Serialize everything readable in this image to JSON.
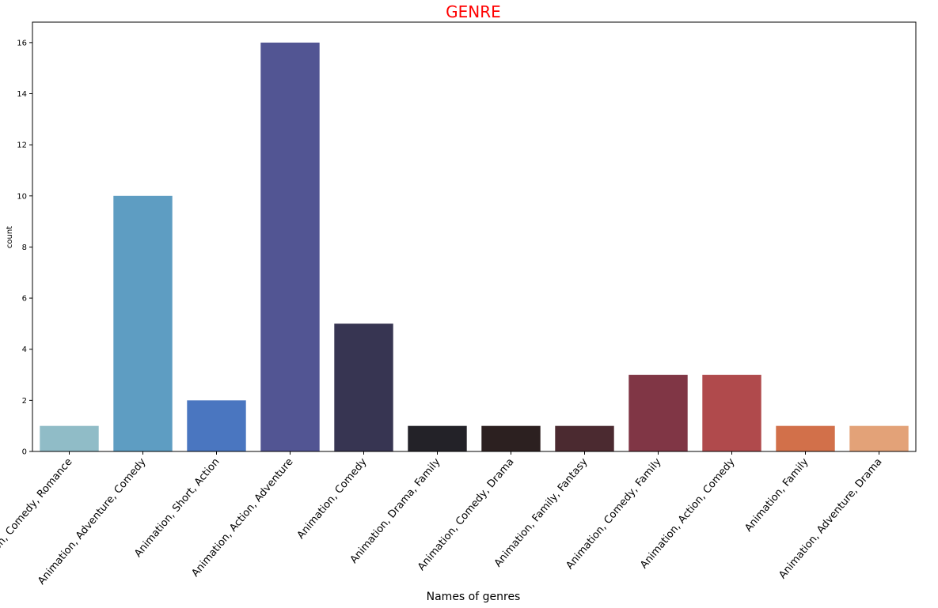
{
  "chart_data": {
    "type": "bar",
    "title": "GENRE",
    "title_color": "#ff0000",
    "xlabel": "Names of genres",
    "ylabel": "count",
    "ylim": [
      0,
      16.8
    ],
    "yticks": [
      0,
      2,
      4,
      6,
      8,
      10,
      12,
      14,
      16
    ],
    "categories": [
      "Animation, Comedy, Romance",
      "Animation, Adventure, Comedy",
      "Animation, Short, Action",
      "Animation, Action, Adventure",
      "Animation, Comedy",
      "Animation, Drama, Family",
      "Animation, Comedy, Drama",
      "Animation, Family, Fantasy",
      "Animation, Comedy, Family",
      "Animation, Action, Comedy",
      "Animation, Family",
      "Animation, Adventure, Drama"
    ],
    "values": [
      1,
      10,
      2,
      16,
      5,
      1,
      1,
      1,
      3,
      3,
      1,
      1
    ],
    "colors": [
      "#90bcc7",
      "#5e9dc2",
      "#4a76c0",
      "#525593",
      "#373552",
      "#232228",
      "#2c2020",
      "#4b2a30",
      "#803645",
      "#b04a4c",
      "#d2704a",
      "#e3a278"
    ],
    "grid": false,
    "legend": "none"
  }
}
